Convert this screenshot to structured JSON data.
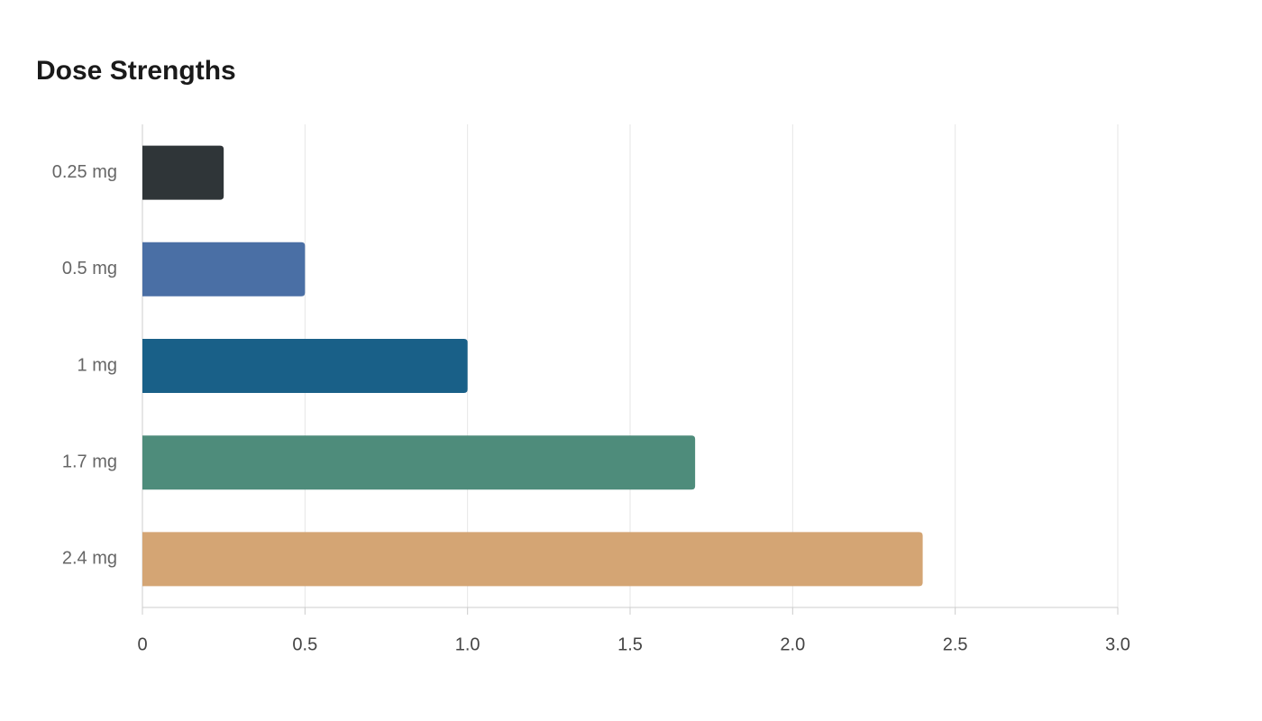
{
  "chart_data": {
    "type": "hbar",
    "title": "Dose Strengths",
    "categories": [
      "0.25 mg",
      "0.5 mg",
      "1 mg",
      "1.7 mg",
      "2.4 mg"
    ],
    "values": [
      0.25,
      0.5,
      1,
      1.7,
      2.4
    ],
    "colors": [
      "#2f3538",
      "#4a6fa5",
      "#196088",
      "#4e8c7b",
      "#d4a574"
    ],
    "xlim": [
      0,
      3
    ],
    "xticks": [
      0,
      0.5,
      {
        "value": 1,
        "label": "1.0"
      },
      1.5,
      {
        "value": 2,
        "label": "2.0"
      },
      2.5,
      {
        "value": 3,
        "label": "3.0"
      }
    ],
    "grid": true
  }
}
